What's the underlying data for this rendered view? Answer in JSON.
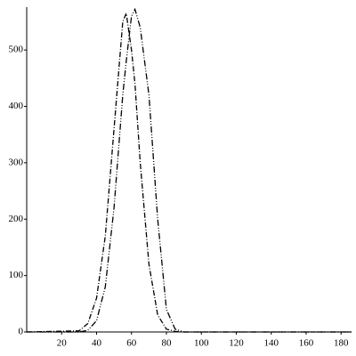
{
  "chart_data": {
    "type": "line",
    "x": [
      0,
      30,
      35,
      40,
      45,
      50,
      55,
      57,
      60,
      62,
      65,
      70,
      75,
      80,
      85,
      90,
      100,
      186
    ],
    "series": [
      {
        "color": "#000000",
        "dash": "6,2,1,2",
        "values": [
          0,
          2,
          15,
          60,
          170,
          360,
          550,
          565,
          500,
          440,
          300,
          120,
          30,
          5,
          1,
          0,
          0,
          0
        ]
      },
      {
        "color": "#000000",
        "dash": "7,2,1,2,1,2",
        "values": [
          0,
          0,
          3,
          20,
          80,
          220,
          420,
          480,
          560,
          572,
          540,
          420,
          200,
          40,
          5,
          0,
          0,
          0
        ]
      }
    ],
    "xlim": [
      0,
      186
    ],
    "xticks": [
      20,
      40,
      60,
      80,
      100,
      120,
      140,
      160,
      180
    ],
    "ylim": [
      0,
      576
    ],
    "yticks": [
      0,
      100,
      200,
      300,
      400,
      500
    ],
    "grid": false
  }
}
